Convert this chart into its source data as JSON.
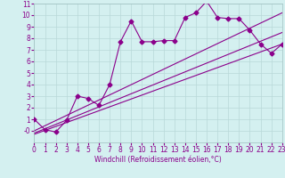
{
  "xlabel": "Windchill (Refroidissement éolien,°C)",
  "background_color": "#d4f0f0",
  "grid_color": "#b8d8d8",
  "line_color": "#8b008b",
  "xlim": [
    0,
    23
  ],
  "ylim": [
    -1,
    11
  ],
  "xticks": [
    0,
    1,
    2,
    3,
    4,
    5,
    6,
    7,
    8,
    9,
    10,
    11,
    12,
    13,
    14,
    15,
    16,
    17,
    18,
    19,
    20,
    21,
    22,
    23
  ],
  "yticks": [
    0,
    1,
    2,
    3,
    4,
    5,
    6,
    7,
    8,
    9,
    10,
    11
  ],
  "ytick_labels": [
    "-0",
    "1",
    "2",
    "3",
    "4",
    "5",
    "6",
    "7",
    "8",
    "9",
    "10",
    "11"
  ],
  "series_x": [
    0,
    1,
    2,
    3,
    4,
    5,
    6,
    7,
    8,
    9,
    10,
    11,
    12,
    13,
    14,
    15,
    16,
    17,
    18,
    19,
    20,
    21,
    22,
    23
  ],
  "series_y": [
    1,
    0.1,
    -0.1,
    0.9,
    3.0,
    2.8,
    2.2,
    4.0,
    7.7,
    9.5,
    7.7,
    7.7,
    7.8,
    7.8,
    9.8,
    10.2,
    11.2,
    9.8,
    9.7,
    9.7,
    8.7,
    7.5,
    6.7,
    7.5
  ],
  "line1_x": [
    0,
    23
  ],
  "line1_y": [
    0.0,
    10.2
  ],
  "line2_x": [
    0,
    23
  ],
  "line2_y": [
    -0.2,
    8.5
  ],
  "line3_x": [
    0,
    23
  ],
  "line3_y": [
    -0.3,
    7.5
  ],
  "tick_fontsize": 5.5,
  "xlabel_fontsize": 5.5
}
